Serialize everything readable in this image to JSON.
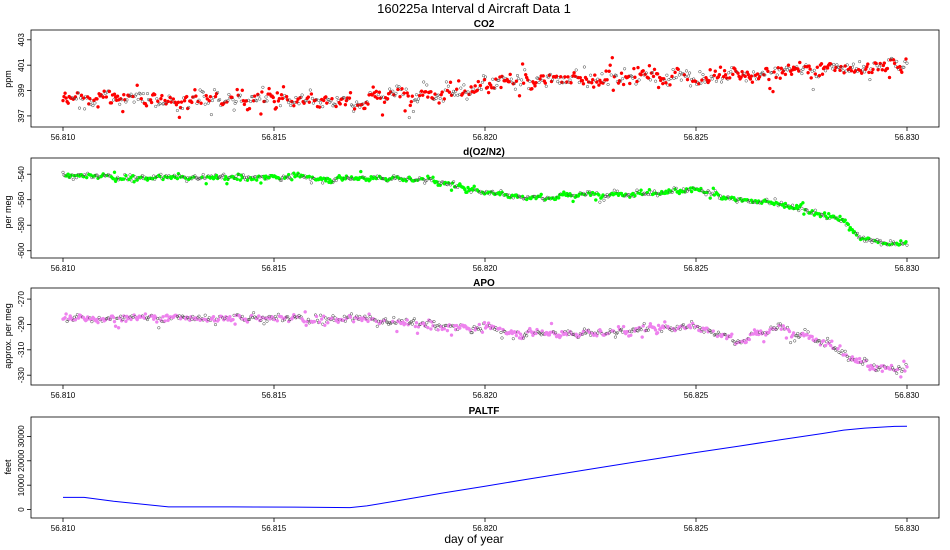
{
  "figure": {
    "title": "160225a   Interval d Aircraft Data 1",
    "xlabel": "day of year"
  },
  "chart_data": [
    {
      "type": "scatter",
      "title": "CO2",
      "ylabel": "ppm",
      "xlim": [
        56.81,
        56.83
      ],
      "ylim": [
        396.6,
        403.3
      ],
      "xticks": [
        "56.810",
        "56.815",
        "56.820",
        "56.825",
        "56.830"
      ],
      "yticks": [
        "397",
        "399",
        "401",
        "403"
      ],
      "color": "#ff0000",
      "trend": {
        "x": [
          56.81,
          56.813,
          56.817,
          56.82,
          56.822,
          56.826,
          56.83
        ],
        "y": [
          398.4,
          398.4,
          398.3,
          399.3,
          399.8,
          400.3,
          401.0
        ]
      },
      "noise": 0.9
    },
    {
      "type": "scatter",
      "title": "d(O2/N2)",
      "ylabel": "per meg",
      "xlim": [
        56.81,
        56.83
      ],
      "ylim": [
        -601,
        -532
      ],
      "xticks": [
        "56.810",
        "56.815",
        "56.820",
        "56.825",
        "56.830"
      ],
      "yticks": [
        "-540",
        "-560",
        "-580",
        "-600"
      ],
      "color": "#00ff00",
      "trend": {
        "x": [
          56.81,
          56.812,
          56.815,
          56.8187,
          56.8196,
          56.821,
          56.825,
          56.826,
          56.827,
          56.8285,
          56.829,
          56.83
        ],
        "y": [
          -541,
          -543,
          -542,
          -544,
          -552,
          -558,
          -553,
          -561,
          -563,
          -577,
          -592,
          -594
        ]
      },
      "noise": 3
    },
    {
      "type": "scatter",
      "title": "APO",
      "ylabel": "approx. per meg",
      "xlim": [
        56.81,
        56.83
      ],
      "ylim": [
        -333,
        -266
      ],
      "xticks": [
        "56.810",
        "56.815",
        "56.820",
        "56.825",
        "56.830"
      ],
      "yticks": [
        "-270",
        "-290",
        "-310",
        "-330"
      ],
      "color": "#ee82ee",
      "trend": {
        "x": [
          56.81,
          56.813,
          56.817,
          56.8195,
          56.822,
          56.825,
          56.826,
          56.827,
          56.828,
          56.8288,
          56.8293,
          56.83
        ],
        "y": [
          -285,
          -285,
          -286,
          -292,
          -298,
          -291,
          -302,
          -293,
          -302,
          -318,
          -326,
          -327
        ]
      },
      "noise": 4.5
    },
    {
      "type": "line",
      "title": "PALTF",
      "ylabel": "feet",
      "xlim": [
        56.81,
        56.83
      ],
      "ylim": [
        -1000,
        35500
      ],
      "xticks": [
        "56.810",
        "56.815",
        "56.820",
        "56.825",
        "56.830"
      ],
      "yticks": [
        "0",
        "10000",
        "20000",
        "30000"
      ],
      "color": "#0000ff",
      "x": [
        56.81,
        56.8105,
        56.8112,
        56.8125,
        56.814,
        56.8155,
        56.8168,
        56.8172,
        56.818,
        56.819,
        56.82,
        56.821,
        56.822,
        56.823,
        56.824,
        56.825,
        56.826,
        56.827,
        56.828,
        56.8285,
        56.829,
        56.8297,
        56.83
      ],
      "y": [
        5000,
        5000,
        3400,
        1100,
        1100,
        1000,
        800,
        1500,
        3800,
        6800,
        9600,
        12400,
        15200,
        18000,
        20700,
        23400,
        26000,
        28600,
        31200,
        32600,
        33400,
        34100,
        34200
      ]
    }
  ]
}
